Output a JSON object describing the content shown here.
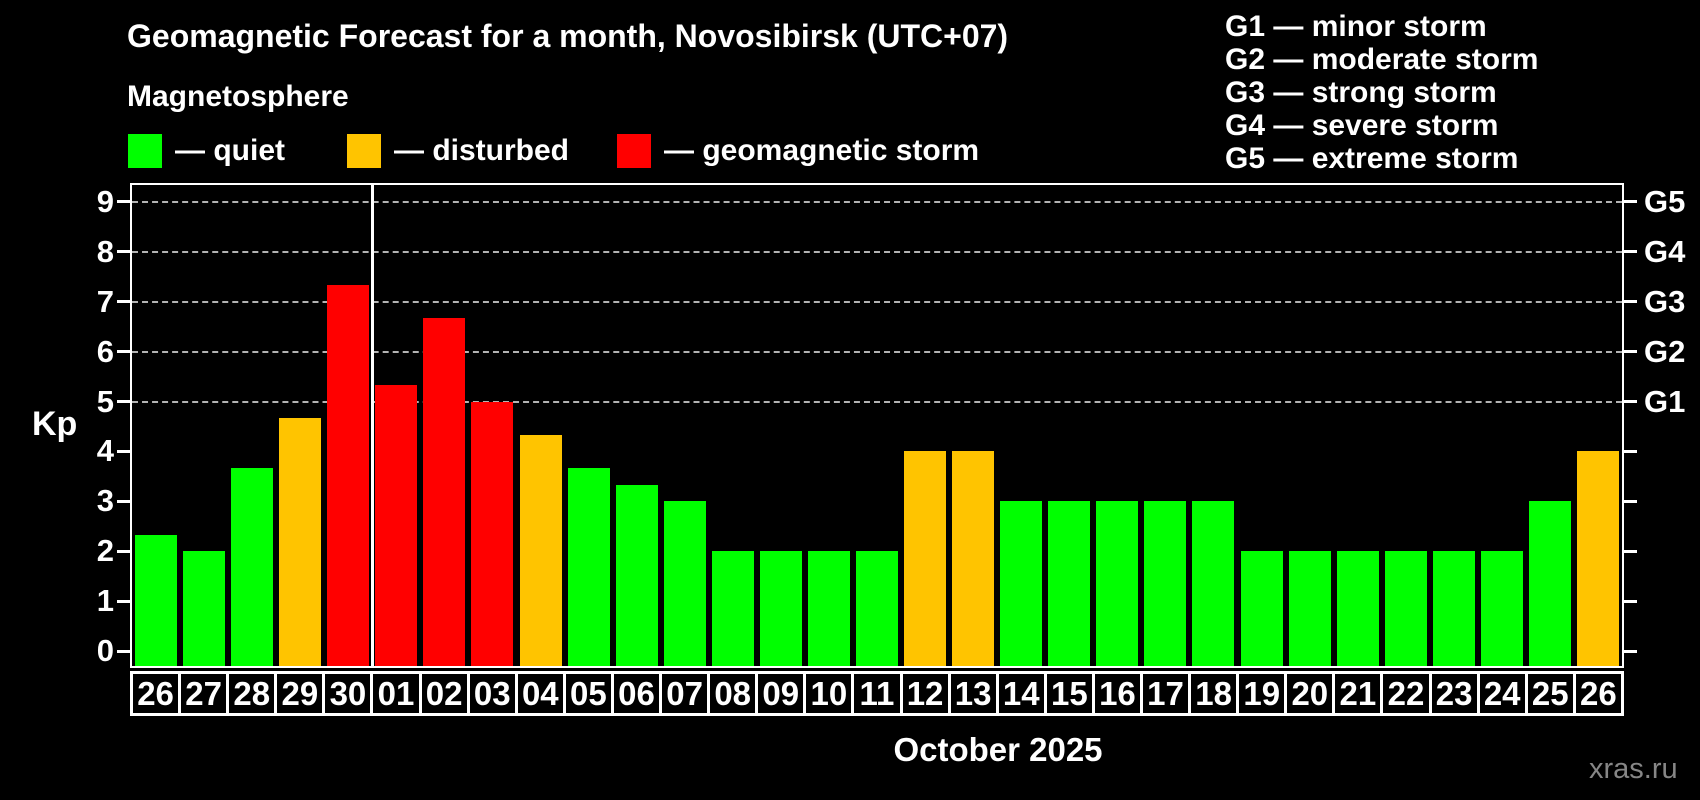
{
  "header": {
    "title": "Geomagnetic Forecast for a month, Novosibirsk (UTC+07)",
    "subtitle": "Magnetosphere"
  },
  "legend": {
    "items": [
      {
        "status": "quiet",
        "label": "— quiet"
      },
      {
        "status": "disturbed",
        "label": "— disturbed"
      },
      {
        "status": "storm",
        "label": "— geomagnetic storm"
      }
    ]
  },
  "g_legend": {
    "items": [
      "G1 — minor storm",
      "G2 — moderate storm",
      "G3 — strong storm",
      "G4 — severe storm",
      "G5 — extreme storm"
    ]
  },
  "colors": {
    "quiet": "#00ff00",
    "disturbed": "#ffc400",
    "storm": "#ff0000",
    "grid": "#b3b3b3",
    "axis": "#ffffff",
    "watermark_gray": "#868686"
  },
  "chart_data": {
    "type": "bar",
    "title": "Geomagnetic Forecast for a month, Novosibirsk (UTC+07)",
    "ylabel": "Kp",
    "xlabel": "October 2025",
    "ylim": [
      0,
      9.4
    ],
    "grid": "horizontal dashed lines at Kp 5,6,7,8,9",
    "legend_position": "top",
    "yticks": [
      "0",
      "1",
      "2",
      "3",
      "4",
      "5",
      "6",
      "7",
      "8",
      "9"
    ],
    "right_axis": {
      "labels": [
        "G1",
        "G2",
        "G3",
        "G4",
        "G5"
      ],
      "kp_levels": [
        5,
        6,
        7,
        8,
        9
      ]
    },
    "month_separator_after_index": 4,
    "categories": [
      "26",
      "27",
      "28",
      "29",
      "30",
      "01",
      "02",
      "03",
      "04",
      "05",
      "06",
      "07",
      "08",
      "09",
      "10",
      "11",
      "12",
      "13",
      "14",
      "15",
      "16",
      "17",
      "18",
      "19",
      "20",
      "21",
      "22",
      "23",
      "24",
      "25",
      "26"
    ],
    "values": [
      2.33,
      2.0,
      3.67,
      4.67,
      7.33,
      5.33,
      6.67,
      5.0,
      4.33,
      3.67,
      3.33,
      3.0,
      2.0,
      2.0,
      2.0,
      2.0,
      4.0,
      4.0,
      3.0,
      3.0,
      3.0,
      3.0,
      3.0,
      2.0,
      2.0,
      2.0,
      2.0,
      2.0,
      2.0,
      3.0,
      4.0
    ],
    "statuses": [
      "quiet",
      "quiet",
      "quiet",
      "disturbed",
      "storm",
      "storm",
      "storm",
      "storm",
      "disturbed",
      "quiet",
      "quiet",
      "quiet",
      "quiet",
      "quiet",
      "quiet",
      "quiet",
      "disturbed",
      "disturbed",
      "quiet",
      "quiet",
      "quiet",
      "quiet",
      "quiet",
      "quiet",
      "quiet",
      "quiet",
      "quiet",
      "quiet",
      "quiet",
      "quiet",
      "disturbed"
    ]
  },
  "footer": {
    "month_label": "October 2025",
    "watermark": "xras.ru"
  }
}
